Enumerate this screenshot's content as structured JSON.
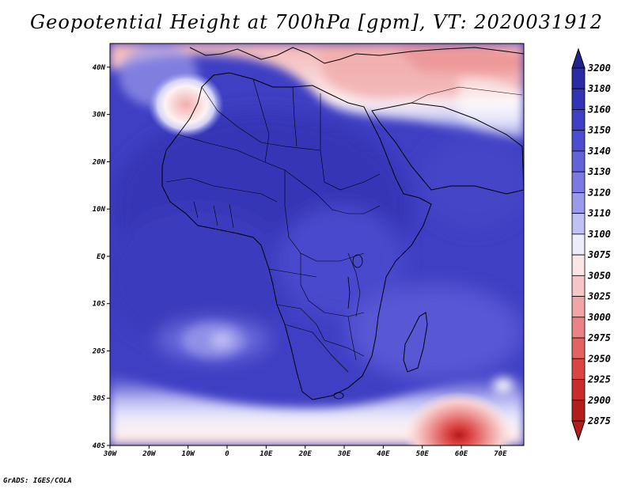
{
  "title": "Geopotential Height at 700hPa [gpm], VT: 2020031912",
  "footer": "GrADS: IGES/COLA",
  "map": {
    "lat_ticks": [
      "40N",
      "30N",
      "20N",
      "10N",
      "EQ",
      "10S",
      "20S",
      "30S",
      "40S"
    ],
    "lon_ticks": [
      "30W",
      "20W",
      "10W",
      "0",
      "10E",
      "20E",
      "30E",
      "40E",
      "50E",
      "60E",
      "70E"
    ],
    "lat_range": [
      -40,
      45
    ],
    "lon_range": [
      -30,
      76
    ]
  },
  "colorbar": {
    "levels": [
      "3200",
      "3180",
      "3160",
      "3150",
      "3140",
      "3130",
      "3120",
      "3110",
      "3100",
      "3075",
      "3050",
      "3025",
      "3000",
      "2975",
      "2950",
      "2925",
      "2900",
      "2875"
    ],
    "colors": [
      "#23238e",
      "#2b2ba3",
      "#3333b5",
      "#3f3fc4",
      "#4d4dcf",
      "#6262d9",
      "#7a7ae2",
      "#9a9aeb",
      "#c0c0f3",
      "#ececfc",
      "#fbe6e6",
      "#f6c6c6",
      "#f0a6a6",
      "#ea8484",
      "#e36262",
      "#db4444",
      "#c92c2c",
      "#b31d1d"
    ]
  }
}
